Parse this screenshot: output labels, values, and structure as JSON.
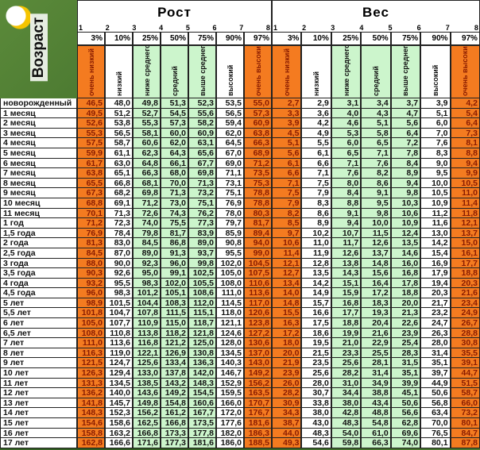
{
  "header": {
    "age_label": "Возраст",
    "height_title": "Рост",
    "weight_title": "Вес",
    "column_numbers": [
      "1",
      "2",
      "3",
      "4",
      "5",
      "6",
      "7",
      "8"
    ],
    "percentiles": [
      "3%",
      "10%",
      "25%",
      "50%",
      "75%",
      "90%",
      "97%"
    ],
    "categories": [
      "очень низкий",
      "низкий",
      "ниже среднего",
      "средний",
      "выше среднего",
      "высокий",
      "очень высокий"
    ]
  },
  "colors": {
    "orange": "#f47b20",
    "white": "#ffffff",
    "green": "#ccf5cc"
  },
  "rows": [
    {
      "age": "новорожденный",
      "height": [
        "46,5",
        "48,0",
        "49,8",
        "51,3",
        "52,3",
        "53,5",
        "55,0"
      ],
      "weight": [
        "2,7",
        "2,9",
        "3,1",
        "3,4",
        "3,7",
        "3,9",
        "4,2"
      ]
    },
    {
      "age": "1 месяц",
      "height": [
        "49,5",
        "51,2",
        "52,7",
        "54,5",
        "55,6",
        "56,5",
        "57,3"
      ],
      "weight": [
        "3,3",
        "3,6",
        "4,0",
        "4,3",
        "4,7",
        "5,1",
        "5,4"
      ]
    },
    {
      "age": "2 месяц",
      "height": [
        "52,6",
        "53,8",
        "55,3",
        "57,3",
        "58,2",
        "59,4",
        "60,9"
      ],
      "weight": [
        "3,9",
        "4,2",
        "4,6",
        "5,1",
        "5,6",
        "6,0",
        "6,4"
      ]
    },
    {
      "age": "3 месяц",
      "height": [
        "55,3",
        "56,5",
        "58,1",
        "60,0",
        "60,9",
        "62,0",
        "63,8"
      ],
      "weight": [
        "4,5",
        "4,9",
        "5,3",
        "5,8",
        "6,4",
        "7,0",
        "7,3"
      ]
    },
    {
      "age": "4 месяц",
      "height": [
        "57,5",
        "58,7",
        "60,6",
        "62,0",
        "63,1",
        "64,5",
        "66,3"
      ],
      "weight": [
        "5,1",
        "5,5",
        "6,0",
        "6,5",
        "7,2",
        "7,6",
        "8,1"
      ]
    },
    {
      "age": "5 месяц",
      "height": [
        "59,9",
        "61,1",
        "62,3",
        "64,3",
        "65,6",
        "67,0",
        "68,9"
      ],
      "weight": [
        "5,6",
        "6,1",
        "6,5",
        "7,1",
        "7,8",
        "8,3",
        "8,8"
      ]
    },
    {
      "age": "6 месяц",
      "height": [
        "61,7",
        "63,0",
        "64,8",
        "66,1",
        "67,7",
        "69,0",
        "71,2"
      ],
      "weight": [
        "6,1",
        "6,6",
        "7,1",
        "7,6",
        "8,4",
        "9,0",
        "9,4"
      ]
    },
    {
      "age": "7 месяц",
      "height": [
        "63,8",
        "65,1",
        "66,3",
        "68,0",
        "69,8",
        "71,1",
        "73,5"
      ],
      "weight": [
        "6,6",
        "7,1",
        "7,6",
        "8,2",
        "8,9",
        "9,5",
        "9,9"
      ]
    },
    {
      "age": "8 месяц",
      "height": [
        "65,5",
        "66,8",
        "68,1",
        "70,0",
        "71,3",
        "73,1",
        "75,3"
      ],
      "weight": [
        "7,1",
        "7,5",
        "8,0",
        "8,6",
        "9,4",
        "10,0",
        "10,5"
      ]
    },
    {
      "age": "9 месяц",
      "height": [
        "67,3",
        "68,2",
        "69,8",
        "71,3",
        "73,2",
        "75,1",
        "78,8"
      ],
      "weight": [
        "7,5",
        "7,9",
        "8,4",
        "9,1",
        "9,8",
        "10,5",
        "11,0"
      ]
    },
    {
      "age": "10 месяц",
      "height": [
        "68,8",
        "69,1",
        "71,2",
        "73,0",
        "75,1",
        "76,9",
        "78,8"
      ],
      "weight": [
        "7,9",
        "8,3",
        "8,8",
        "9,5",
        "10,3",
        "10,9",
        "11,4"
      ]
    },
    {
      "age": "11 месяц",
      "height": [
        "70,1",
        "71,3",
        "72,6",
        "74,3",
        "76,2",
        "78,0",
        "80,3"
      ],
      "weight": [
        "8,2",
        "8,6",
        "9,1",
        "9,8",
        "10,6",
        "11,2",
        "11,8"
      ]
    },
    {
      "age": "1 год",
      "height": [
        "71,2",
        "72,3",
        "74,0",
        "75,5",
        "77,3",
        "79,7",
        "81,7"
      ],
      "weight": [
        "8,5",
        "8,9",
        "9,4",
        "10,0",
        "10,9",
        "11,6",
        "12,1"
      ]
    },
    {
      "age": "1,5 года",
      "height": [
        "76,9",
        "78,4",
        "79,8",
        "81,7",
        "83,9",
        "85,9",
        "89,4"
      ],
      "weight": [
        "9,7",
        "10,2",
        "10,7",
        "11,5",
        "12,4",
        "13,0",
        "13,7"
      ]
    },
    {
      "age": "2 года",
      "height": [
        "81,3",
        "83,0",
        "84,5",
        "86,8",
        "89,0",
        "90,8",
        "94,0"
      ],
      "weight": [
        "10,6",
        "11,0",
        "11,7",
        "12,6",
        "13,5",
        "14,2",
        "15,0"
      ]
    },
    {
      "age": "2,5 года",
      "height": [
        "84,5",
        "87,0",
        "89,0",
        "91,3",
        "93,7",
        "95,5",
        "99,0"
      ],
      "weight": [
        "11,4",
        "11,9",
        "12,6",
        "13,7",
        "14,6",
        "15,4",
        "16,1"
      ]
    },
    {
      "age": "3 года",
      "height": [
        "88,0",
        "90,0",
        "92,3",
        "96,0",
        "99,8",
        "102,0",
        "104,5"
      ],
      "weight": [
        "12,1",
        "12,8",
        "13,8",
        "14,8",
        "16,0",
        "16,9",
        "17,7"
      ]
    },
    {
      "age": "3,5 года",
      "height": [
        "90,3",
        "92,6",
        "95,0",
        "99,1",
        "102,5",
        "105,0",
        "107,5"
      ],
      "weight": [
        "12,7",
        "13,5",
        "14,3",
        "15,6",
        "16,8",
        "17,9",
        "18,8"
      ]
    },
    {
      "age": "4 года",
      "height": [
        "93,2",
        "95,5",
        "98,3",
        "102,0",
        "105,5",
        "108,0",
        "110,6"
      ],
      "weight": [
        "13,4",
        "14,2",
        "15,1",
        "16,4",
        "17,8",
        "19,4",
        "20,3"
      ]
    },
    {
      "age": "4,5 года",
      "height": [
        "96,0",
        "98,3",
        "101,2",
        "105,1",
        "108,6",
        "111,0",
        "113,6"
      ],
      "weight": [
        "14,0",
        "14,9",
        "15,9",
        "17,2",
        "18,8",
        "20,3",
        "21,6"
      ]
    },
    {
      "age": "5 лет",
      "height": [
        "98,9",
        "101,5",
        "104,4",
        "108,3",
        "112,0",
        "114,5",
        "117,0"
      ],
      "weight": [
        "14,8",
        "15,7",
        "16,8",
        "18,3",
        "20,0",
        "21,7",
        "23,4"
      ]
    },
    {
      "age": "5,5 лет",
      "height": [
        "101,8",
        "104,7",
        "107,8",
        "111,5",
        "115,1",
        "118,0",
        "120,6"
      ],
      "weight": [
        "15,5",
        "16,6",
        "17,7",
        "19,3",
        "21,3",
        "23,2",
        "24,9"
      ]
    },
    {
      "age": "6 лет",
      "height": [
        "105,0",
        "107,7",
        "110,9",
        "115,0",
        "118,7",
        "121,1",
        "123,8"
      ],
      "weight": [
        "16,3",
        "17,5",
        "18,8",
        "20,4",
        "22,6",
        "24,7",
        "26,7"
      ]
    },
    {
      "age": "6,5 лет",
      "height": [
        "108,0",
        "110,8",
        "113,8",
        "118,2",
        "121,8",
        "124,6",
        "127,2"
      ],
      "weight": [
        "17,2",
        "18,6",
        "19,9",
        "21,6",
        "23,9",
        "26,3",
        "28,8"
      ]
    },
    {
      "age": "7 лет",
      "height": [
        "111,0",
        "113,6",
        "116,8",
        "121,2",
        "125,0",
        "128,0",
        "130,6"
      ],
      "weight": [
        "18,0",
        "19,5",
        "21,0",
        "22,9",
        "25,4",
        "28,0",
        "30,8"
      ]
    },
    {
      "age": "8 лет",
      "height": [
        "116,3",
        "119,0",
        "122,1",
        "126,9",
        "130,8",
        "134,5",
        "137,0"
      ],
      "weight": [
        "20,0",
        "21,5",
        "23,3",
        "25,5",
        "28,3",
        "31,4",
        "35,5"
      ]
    },
    {
      "age": "9 лет",
      "height": [
        "121,5",
        "124,7",
        "125,6",
        "133,4",
        "136,3",
        "140,3",
        "143,0"
      ],
      "weight": [
        "21,9",
        "23,5",
        "25,6",
        "28,1",
        "31,5",
        "35,1",
        "39,1"
      ]
    },
    {
      "age": "10 лет",
      "height": [
        "126,3",
        "129,4",
        "133,0",
        "137,8",
        "142,0",
        "146,7",
        "149,2"
      ],
      "weight": [
        "23,9",
        "25,6",
        "28,2",
        "31,4",
        "35,1",
        "39,7",
        "44,7"
      ]
    },
    {
      "age": "11 лет",
      "height": [
        "131,3",
        "134,5",
        "138,5",
        "143,2",
        "148,3",
        "152,9",
        "156,2"
      ],
      "weight": [
        "26,0",
        "28,0",
        "31,0",
        "34,9",
        "39,9",
        "44,9",
        "51,5"
      ]
    },
    {
      "age": "12 лет",
      "height": [
        "136,2",
        "140,0",
        "143,6",
        "149,2",
        "154,5",
        "159,5",
        "163,5"
      ],
      "weight": [
        "28,2",
        "30,7",
        "34,4",
        "38,8",
        "45,1",
        "50,6",
        "58,7"
      ]
    },
    {
      "age": "13 лет",
      "height": [
        "141,8",
        "145,7",
        "149,8",
        "154,8",
        "160,6",
        "166,0",
        "170,7"
      ],
      "weight": [
        "30,9",
        "33,8",
        "38,0",
        "43,4",
        "50,6",
        "56,8",
        "66,0"
      ]
    },
    {
      "age": "14 лет",
      "height": [
        "148,3",
        "152,3",
        "156,2",
        "161,2",
        "167,7",
        "172,0",
        "176,7"
      ],
      "weight": [
        "34,3",
        "38,0",
        "42,8",
        "48,8",
        "56,6",
        "63,4",
        "73,2"
      ]
    },
    {
      "age": "15 лет",
      "height": [
        "154,6",
        "158,6",
        "162,5",
        "166,8",
        "173,5",
        "177,6",
        "181,6"
      ],
      "weight": [
        "38,7",
        "43,0",
        "48,3",
        "54,8",
        "62,8",
        "70,0",
        "80,1"
      ]
    },
    {
      "age": "16 лет",
      "height": [
        "158,8",
        "163,2",
        "166,8",
        "173,3",
        "177,8",
        "182,0",
        "186,3"
      ],
      "weight": [
        "44,0",
        "48,3",
        "54,0",
        "61,0",
        "69,6",
        "76,5",
        "84,7"
      ]
    },
    {
      "age": "17 лет",
      "height": [
        "162,8",
        "166,6",
        "171,6",
        "177,3",
        "181,6",
        "186,0",
        "188,5"
      ],
      "weight": [
        "49,3",
        "54,6",
        "59,8",
        "66,3",
        "74,0",
        "80,1",
        "87,8"
      ]
    }
  ]
}
